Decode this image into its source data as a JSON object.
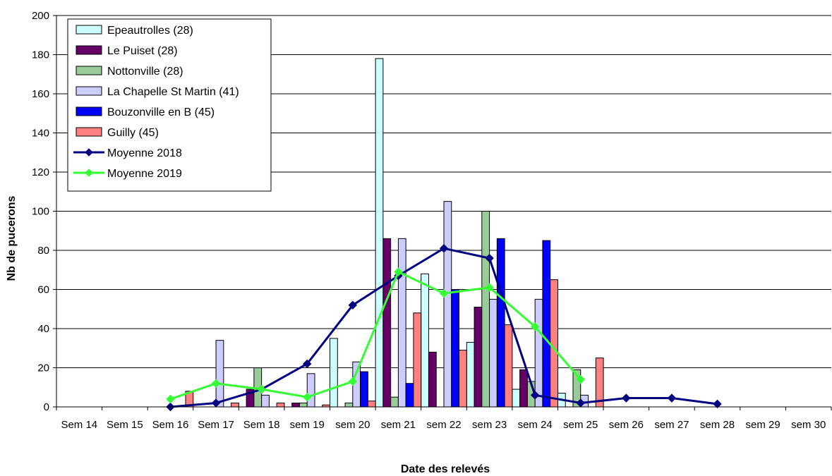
{
  "chart_data": {
    "type": "bar",
    "title": "",
    "xlabel": "Date des relevés",
    "ylabel": "Nb de pucerons",
    "ylim": [
      0,
      200
    ],
    "yticks": [
      0,
      20,
      40,
      60,
      80,
      100,
      120,
      140,
      160,
      180,
      200
    ],
    "grid": true,
    "legend_position": "top-left",
    "categories": [
      "Sem 14",
      "Sem 15",
      "Sem 16",
      "Sem 17",
      "Sem 18",
      "sem 19",
      "sem 20",
      "sem 21",
      "sem 22",
      "sem 23",
      "sem 24",
      "sem 25",
      "sem 26",
      "sem 27",
      "sem 28",
      "sem 29",
      "sem 30"
    ],
    "series": [
      {
        "name": "Epeautrolles (28)",
        "type": "bar",
        "color": "#ccffff",
        "values": [
          null,
          null,
          null,
          null,
          null,
          null,
          35,
          178,
          68,
          33,
          9,
          7,
          null,
          null,
          null,
          null,
          null
        ]
      },
      {
        "name": "Le Puiset (28)",
        "type": "bar",
        "color": "#660066",
        "values": [
          null,
          null,
          null,
          null,
          9,
          2,
          null,
          86,
          28,
          51,
          19,
          null,
          null,
          null,
          null,
          null,
          null
        ]
      },
      {
        "name": "Nottonville (28)",
        "type": "bar",
        "color": "#99cc99",
        "values": [
          null,
          null,
          null,
          null,
          20,
          2,
          2,
          5,
          null,
          100,
          13,
          19,
          null,
          null,
          null,
          null,
          null
        ]
      },
      {
        "name": "La Chapelle St Martin (41)",
        "type": "bar",
        "color": "#ccccff",
        "values": [
          null,
          null,
          null,
          34,
          6,
          17,
          23,
          86,
          105,
          55,
          55,
          6,
          null,
          null,
          null,
          null,
          null
        ]
      },
      {
        "name": "Bouzonville en B (45)",
        "type": "bar",
        "color": "#0000ff",
        "values": [
          null,
          null,
          null,
          null,
          null,
          null,
          18,
          12,
          60,
          86,
          85,
          null,
          null,
          null,
          null,
          null,
          null
        ]
      },
      {
        "name": "Guilly (45)",
        "type": "bar",
        "color": "#ff8080",
        "values": [
          null,
          null,
          8,
          2,
          2,
          1,
          3,
          48,
          29,
          42,
          65,
          25,
          null,
          null,
          null,
          null,
          null
        ]
      },
      {
        "name": "Moyenne 2018",
        "type": "line",
        "color": "#000080",
        "values": [
          null,
          null,
          0,
          2,
          9,
          22,
          52,
          67,
          81,
          76,
          6,
          2,
          4.5,
          4.5,
          1.5,
          null,
          null
        ]
      },
      {
        "name": "Moyenne 2019",
        "type": "line",
        "color": "#33ff33",
        "values": [
          null,
          null,
          4,
          12,
          9,
          5,
          13,
          69,
          58,
          61,
          41,
          14,
          null,
          null,
          null,
          null,
          null
        ]
      }
    ]
  }
}
